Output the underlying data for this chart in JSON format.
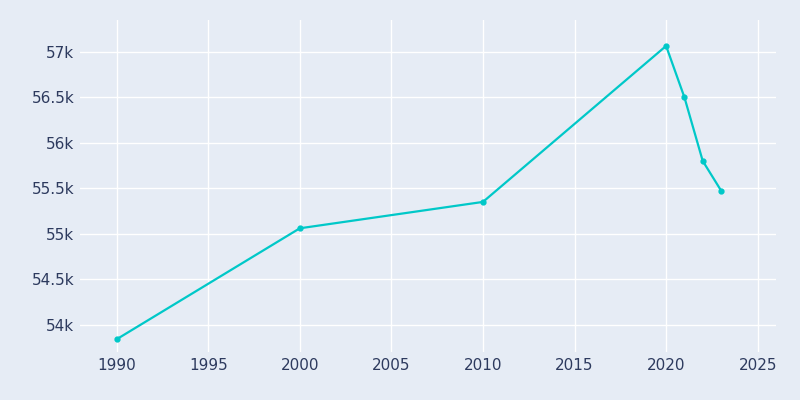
{
  "years": [
    1990,
    2000,
    2010,
    2020,
    2021,
    2022,
    2023
  ],
  "population": [
    53840,
    55060,
    55350,
    57065,
    56500,
    55800,
    55475
  ],
  "line_color": "#00c8c8",
  "marker_color": "#00c8c8",
  "background_color": "#e6ecf5",
  "grid_color": "#ffffff",
  "tick_label_color": "#2d3a5e",
  "xlim": [
    1988,
    2026
  ],
  "ylim": [
    53700,
    57350
  ],
  "xticks": [
    1990,
    1995,
    2000,
    2005,
    2010,
    2015,
    2020,
    2025
  ],
  "yticks": [
    54000,
    54500,
    55000,
    55500,
    56000,
    56500,
    57000
  ],
  "ytick_labels": [
    "54k",
    "54.5k",
    "55k",
    "55.5k",
    "56k",
    "56.5k",
    "57k"
  ]
}
